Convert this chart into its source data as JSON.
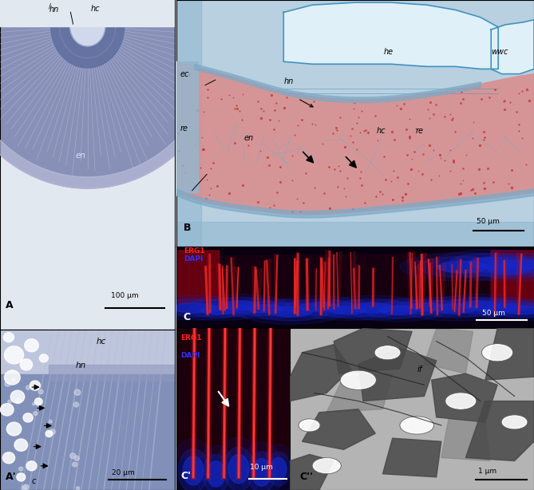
{
  "layout": {
    "figsize": [
      6.69,
      6.14
    ],
    "dpi": 100
  },
  "panels_layout": {
    "A": [
      0.0,
      0.328,
      0.328,
      0.672
    ],
    "Aprime": [
      0.0,
      0.0,
      0.328,
      0.328
    ],
    "B": [
      0.33,
      0.497,
      0.67,
      0.503
    ],
    "C": [
      0.33,
      0.33,
      0.67,
      0.167
    ],
    "Cprime": [
      0.33,
      0.0,
      0.213,
      0.33
    ],
    "Cdprime": [
      0.543,
      0.0,
      0.457,
      0.33
    ]
  },
  "colors": {
    "bg_light_blue": "#dce8f0",
    "bg_medium_blue": "#b8c8dc",
    "tissue_blue_dark": "#7888b0",
    "tissue_blue_mid": "#9098b8",
    "tissue_blue_light": "#c0c8dc",
    "canal_light": "#d8dcea",
    "fiber_white": "#e0e4f0",
    "red_tissue": "#d87870",
    "red_cell": "#c03030",
    "blue_collagen": "#7aaac8",
    "he_white": "#e8f4f8",
    "fluorescence_bg": "#0a0008",
    "erg1_red": "#cc1010",
    "dapi_blue": "#1818cc",
    "tem_bg": "#b0b0b0"
  }
}
